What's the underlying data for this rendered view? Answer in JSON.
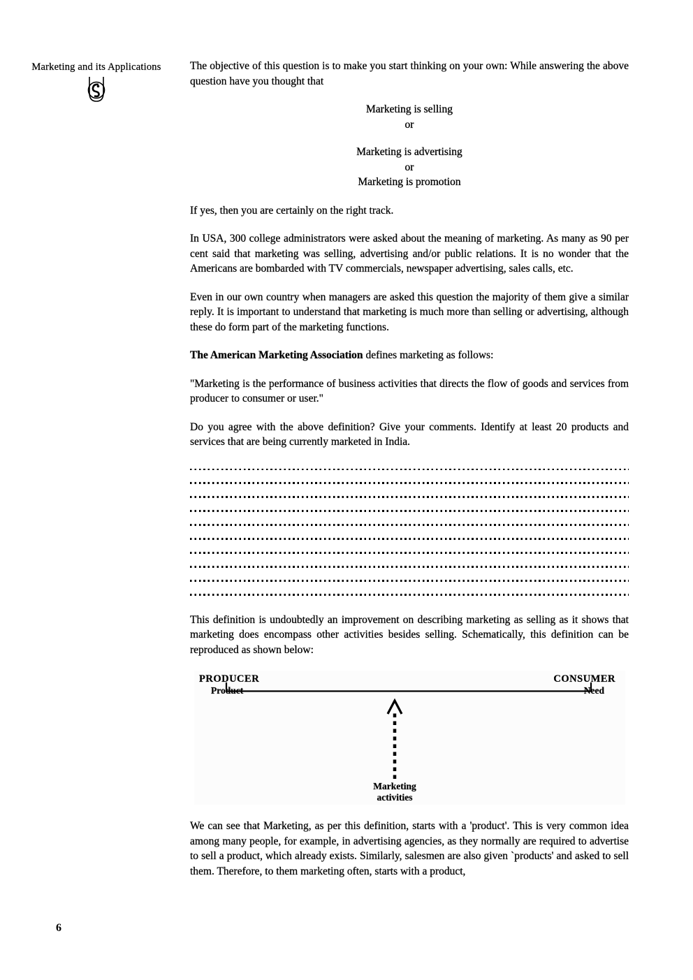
{
  "page_number": "6",
  "sidebar": {
    "title": "Marketing and its Applications",
    "logo": "university-emblem-icon"
  },
  "content": {
    "para_objective": "The objective of this question is to make you start thinking on your own: While answering the above question have you thought that",
    "slogans": {
      "selling": "Marketing is selling",
      "or1": "or",
      "advertising": "Marketing is advertising",
      "or2": "or",
      "promotion": "Marketing is promotion"
    },
    "para_track": "If yes, then you are certainly on the right track.",
    "para_usa": "In USA, 300 college administrators were asked about the meaning of marketing. As many as 90 per cent said that marketing was selling, advertising and/or public relations. It is no wonder that the Americans are bombarded with TV commercials, newspaper advertising, sales calls, etc.",
    "para_country": "Even in our own country when managers are asked this question the majority of them give a similar reply. It is important to understand that marketing is much more than selling or advertising, although these do form part of the marketing functions.",
    "ama_bold": "The American Marketing Association",
    "ama_rest": " defines marketing as follows:",
    "para_quote": "\"Marketing is the performance of business activities that directs the flow of goods and services from producer to consumer or user.\"",
    "para_agree": "Do you agree with the above definition? Give your comments. Identify at least 20 products and services that are being currently marketed in India.",
    "answer_lines_count": 10,
    "para_definition": "This definition is undoubtedly an improvement on describing marketing as selling as it shows that marketing does encompass other activities besides selling. Schematically, this definition can be reproduced as shown below:",
    "para_product": "We can see that Marketing, as per this definition, starts with a 'product'. This is very common idea among many people, for example, in advertising agencies, as they normally are required to advertise to sell a product, which already exists. Similarly, salesmen are also given `products' and asked to sell them. Therefore, to them marketing often, starts with a product,"
  },
  "diagram": {
    "producer_label": "PRODUCER",
    "producer_sub": "Product",
    "consumer_label": "CONSUMER",
    "consumer_sub": "Need",
    "arrow_label_line1": "Marketing",
    "arrow_label_line2": "activities"
  },
  "colors": {
    "text": "#000000",
    "background": "#ffffff",
    "diagram_background": "#fcfcfc"
  }
}
